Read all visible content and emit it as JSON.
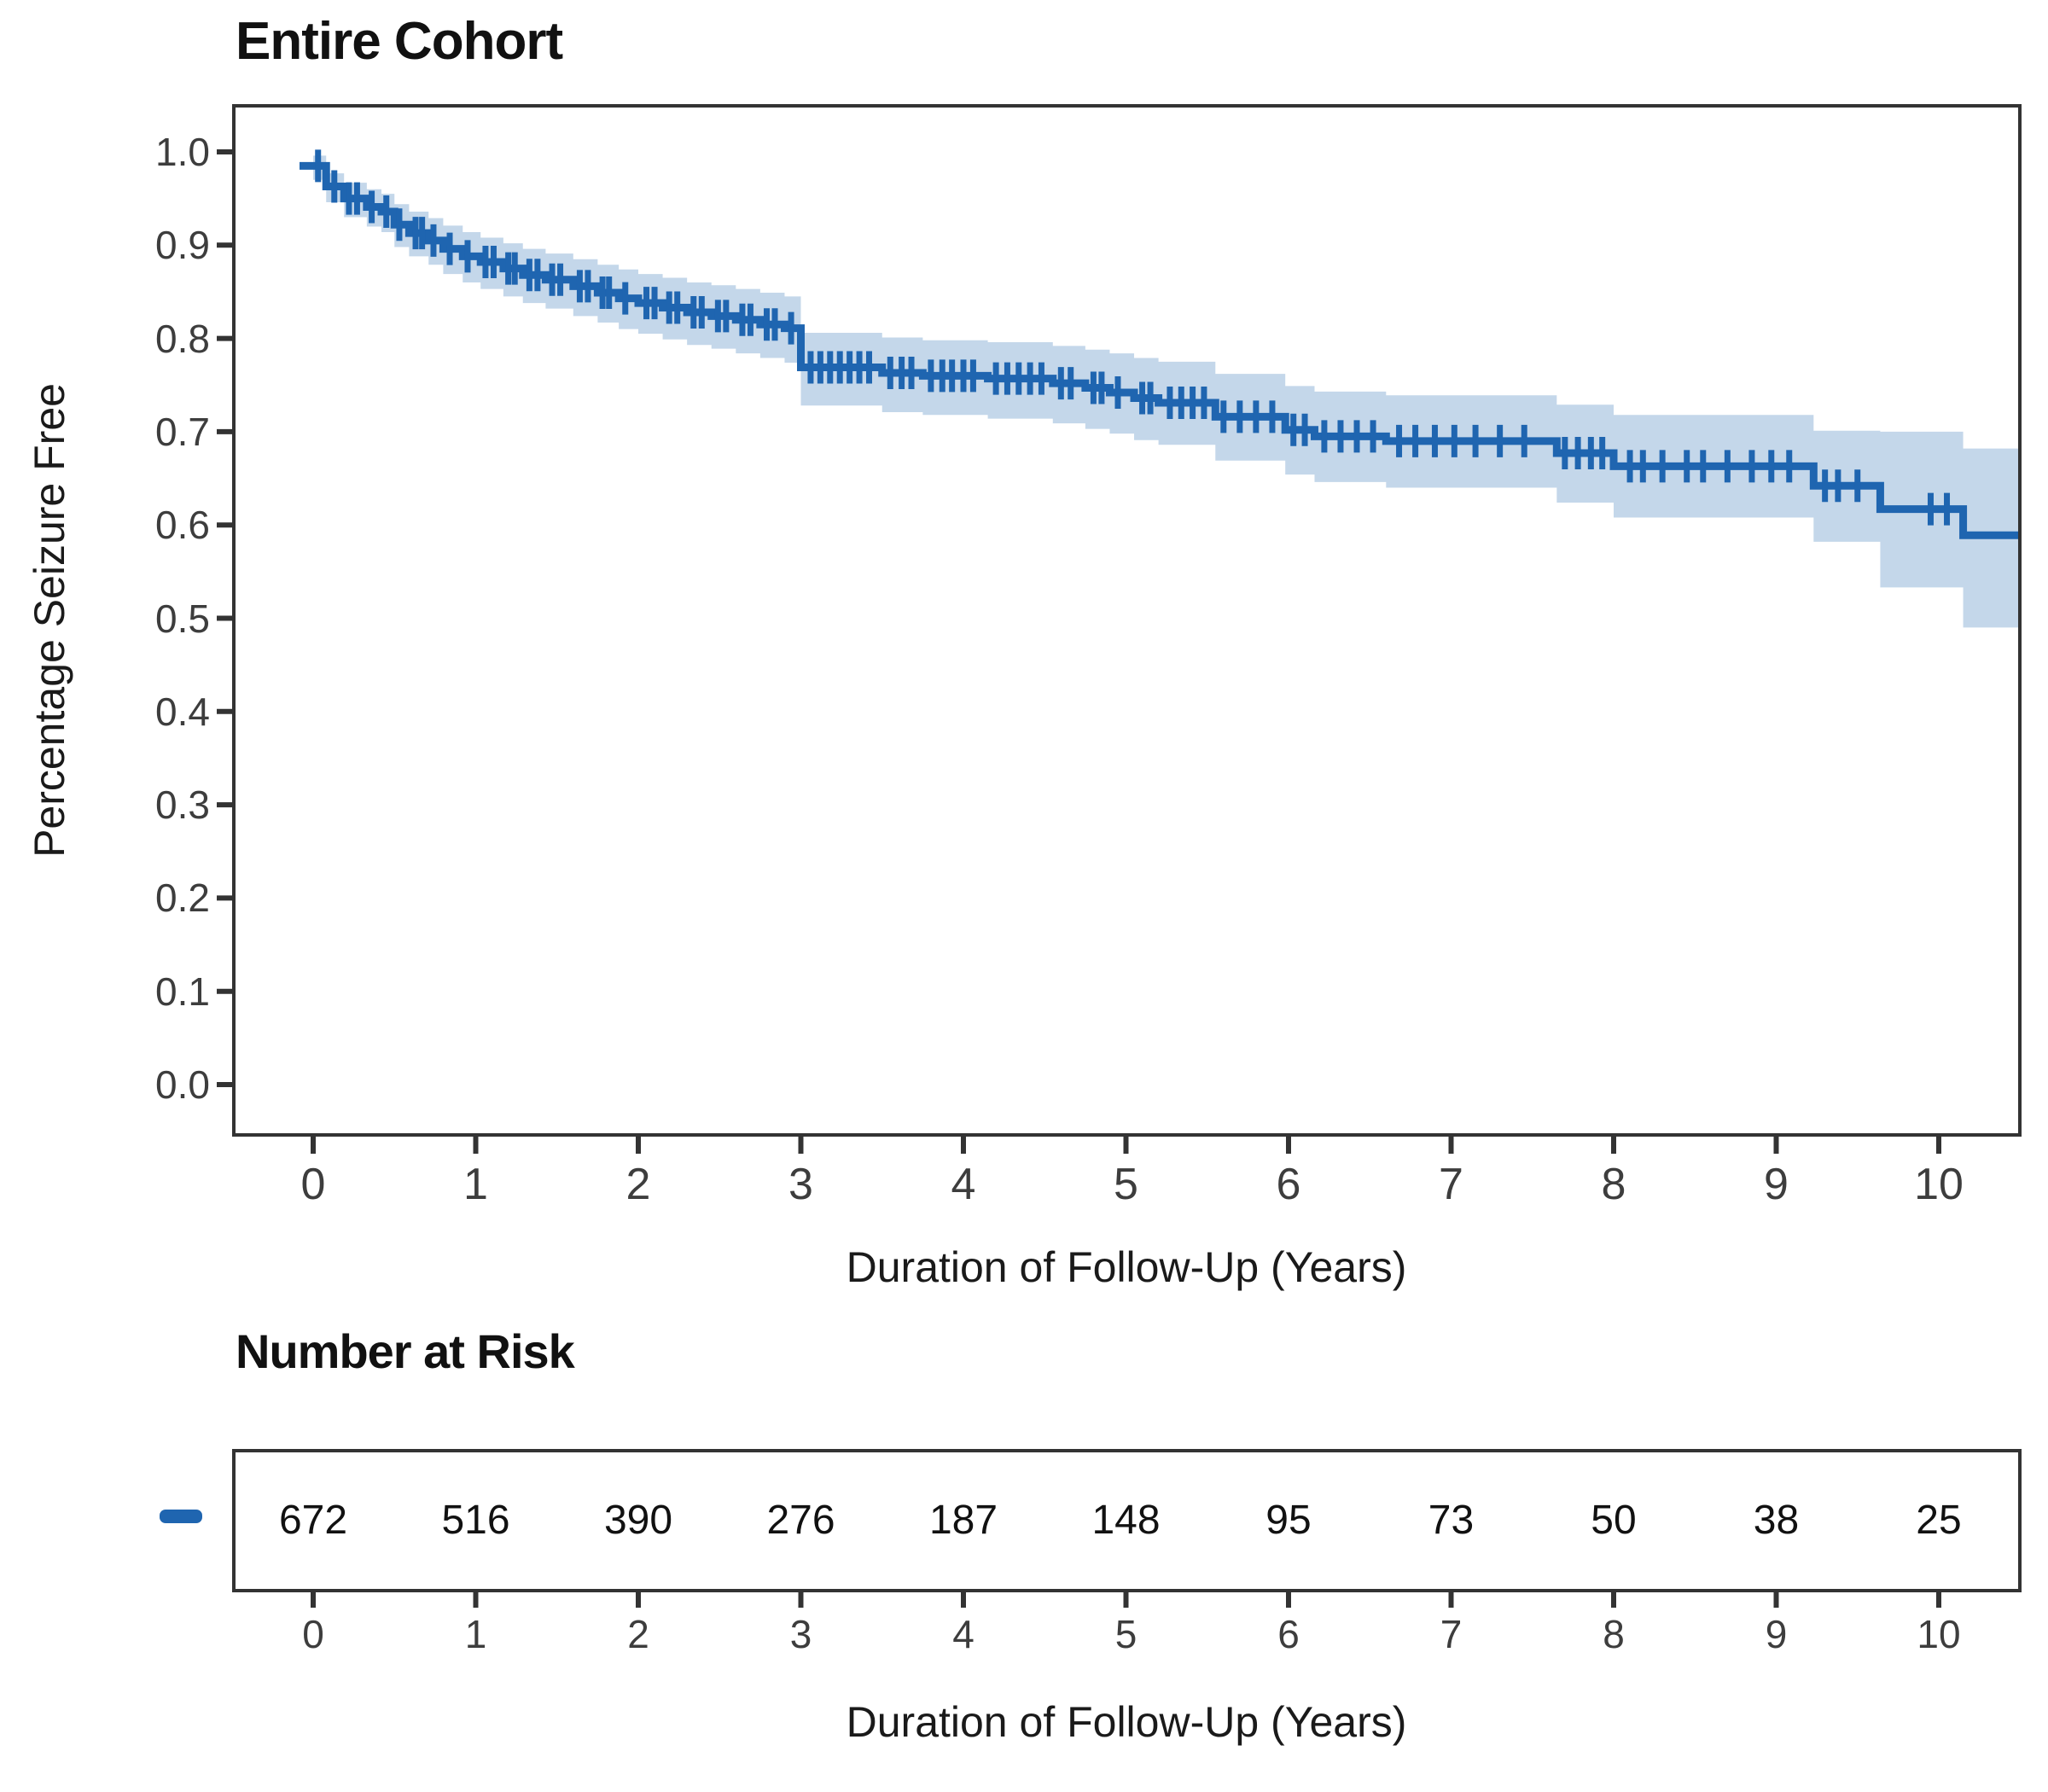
{
  "page": {
    "title": "Entire Cohort",
    "y_axis_label": "Percentage Seizure Free",
    "x_axis_label": "Duration of Follow-Up (Years)",
    "risk_table_title": "Number at Risk",
    "risk_table_x_axis_label": "Duration of Follow-Up (Years)"
  },
  "colors": {
    "line": "#1f65b0",
    "band": "#c4d7ea",
    "axis": "#333333",
    "tick_label": "#3d3d3d",
    "text": "#111111"
  },
  "chart_data": {
    "type": "line",
    "subtype": "kaplan-meier-step-with-confidence-band",
    "title": "Entire Cohort",
    "xlabel": "Duration of Follow-Up (Years)",
    "ylabel": "Percentage Seizure Free",
    "xlim": [
      -0.49,
      10.5
    ],
    "ylim": [
      -0.054,
      1.049
    ],
    "grid": false,
    "x_ticks": [
      0,
      1,
      2,
      3,
      4,
      5,
      6,
      7,
      8,
      9,
      10
    ],
    "y_tick_labels": [
      "1.0",
      "0.9",
      "0.8",
      "0.7",
      "0.6",
      "0.5",
      "0.4",
      "0.3",
      "0.2",
      "0.1",
      "0.0"
    ],
    "series": [
      {
        "name": "Entire Cohort",
        "end_time": 10.5,
        "steps": [
          [
            0,
            0.985
          ],
          [
            0.08,
            0.963
          ],
          [
            0.19,
            0.95
          ],
          [
            0.33,
            0.941
          ],
          [
            0.42,
            0.936
          ],
          [
            0.5,
            0.922
          ],
          [
            0.59,
            0.913
          ],
          [
            0.71,
            0.905
          ],
          [
            0.8,
            0.896
          ],
          [
            0.92,
            0.888
          ],
          [
            1.03,
            0.882
          ],
          [
            1.17,
            0.875
          ],
          [
            1.29,
            0.868
          ],
          [
            1.43,
            0.863
          ],
          [
            1.6,
            0.856
          ],
          [
            1.75,
            0.849
          ],
          [
            1.88,
            0.843
          ],
          [
            2.0,
            0.838
          ],
          [
            2.15,
            0.833
          ],
          [
            2.3,
            0.828
          ],
          [
            2.45,
            0.824
          ],
          [
            2.6,
            0.82
          ],
          [
            2.75,
            0.815
          ],
          [
            2.9,
            0.811
          ],
          [
            3.0,
            0.769
          ],
          [
            3.5,
            0.763
          ],
          [
            3.75,
            0.76
          ],
          [
            4.15,
            0.757
          ],
          [
            4.55,
            0.752
          ],
          [
            4.75,
            0.747
          ],
          [
            4.9,
            0.742
          ],
          [
            5.05,
            0.736
          ],
          [
            5.2,
            0.731
          ],
          [
            5.55,
            0.716
          ],
          [
            5.98,
            0.702
          ],
          [
            6.16,
            0.695
          ],
          [
            6.6,
            0.69
          ],
          [
            7.65,
            0.677
          ],
          [
            8.0,
            0.663
          ],
          [
            9.23,
            0.642
          ],
          [
            9.64,
            0.617
          ],
          [
            10.15,
            0.589
          ]
        ],
        "censor_times": [
          0.03,
          0.13,
          0.22,
          0.27,
          0.36,
          0.45,
          0.53,
          0.63,
          0.67,
          0.74,
          0.84,
          0.95,
          1.06,
          1.11,
          1.2,
          1.24,
          1.33,
          1.38,
          1.47,
          1.52,
          1.64,
          1.69,
          1.78,
          1.82,
          1.92,
          2.05,
          2.1,
          2.19,
          2.24,
          2.34,
          2.39,
          2.49,
          2.54,
          2.64,
          2.69,
          2.79,
          2.84,
          2.94,
          3.06,
          3.12,
          3.18,
          3.24,
          3.3,
          3.36,
          3.42,
          3.55,
          3.62,
          3.68,
          3.8,
          3.87,
          3.93,
          4.0,
          4.06,
          4.2,
          4.27,
          4.34,
          4.41,
          4.48,
          4.6,
          4.66,
          4.8,
          4.85,
          4.95,
          5.1,
          5.15,
          5.27,
          5.34,
          5.41,
          5.48,
          5.6,
          5.7,
          5.8,
          5.9,
          6.03,
          6.1,
          6.22,
          6.32,
          6.42,
          6.52,
          6.68,
          6.78,
          6.9,
          7.02,
          7.15,
          7.3,
          7.45,
          7.7,
          7.78,
          7.86,
          7.93,
          8.1,
          8.18,
          8.3,
          8.45,
          8.55,
          8.7,
          8.85,
          8.97,
          9.08,
          9.3,
          9.38,
          9.5,
          9.95,
          10.05
        ],
        "ci_band": [
          [
            0,
            0.97,
            0.996
          ],
          [
            0.08,
            0.946,
            0.977
          ],
          [
            0.19,
            0.93,
            0.967
          ],
          [
            0.33,
            0.92,
            0.96
          ],
          [
            0.42,
            0.914,
            0.955
          ],
          [
            0.5,
            0.898,
            0.944
          ],
          [
            0.59,
            0.888,
            0.936
          ],
          [
            0.71,
            0.879,
            0.929
          ],
          [
            0.8,
            0.869,
            0.921
          ],
          [
            0.92,
            0.86,
            0.914
          ],
          [
            1.03,
            0.853,
            0.908
          ],
          [
            1.17,
            0.845,
            0.902
          ],
          [
            1.29,
            0.838,
            0.896
          ],
          [
            1.43,
            0.832,
            0.891
          ],
          [
            1.6,
            0.824,
            0.885
          ],
          [
            1.75,
            0.817,
            0.879
          ],
          [
            1.88,
            0.81,
            0.874
          ],
          [
            2.0,
            0.805,
            0.869
          ],
          [
            2.15,
            0.799,
            0.865
          ],
          [
            2.3,
            0.793,
            0.86
          ],
          [
            2.45,
            0.789,
            0.857
          ],
          [
            2.6,
            0.784,
            0.853
          ],
          [
            2.75,
            0.779,
            0.849
          ],
          [
            2.9,
            0.774,
            0.845
          ],
          [
            3.0,
            0.728,
            0.806
          ],
          [
            3.5,
            0.721,
            0.801
          ],
          [
            3.75,
            0.718,
            0.798
          ],
          [
            4.15,
            0.714,
            0.796
          ],
          [
            4.55,
            0.709,
            0.792
          ],
          [
            4.75,
            0.703,
            0.788
          ],
          [
            4.9,
            0.698,
            0.784
          ],
          [
            5.05,
            0.691,
            0.779
          ],
          [
            5.2,
            0.686,
            0.775
          ],
          [
            5.55,
            0.669,
            0.762
          ],
          [
            5.98,
            0.654,
            0.749
          ],
          [
            6.16,
            0.646,
            0.743
          ],
          [
            6.6,
            0.64,
            0.739
          ],
          [
            7.65,
            0.624,
            0.729
          ],
          [
            8.0,
            0.608,
            0.718
          ],
          [
            9.23,
            0.582,
            0.701
          ],
          [
            9.64,
            0.533,
            0.7
          ],
          [
            10.15,
            0.49,
            0.682
          ]
        ]
      }
    ],
    "number_at_risk": {
      "title": "Number at Risk",
      "times": [
        0,
        1,
        2,
        3,
        4,
        5,
        6,
        7,
        8,
        9,
        10
      ],
      "values": [
        672,
        516,
        390,
        276,
        187,
        148,
        95,
        73,
        50,
        38,
        25
      ]
    }
  }
}
